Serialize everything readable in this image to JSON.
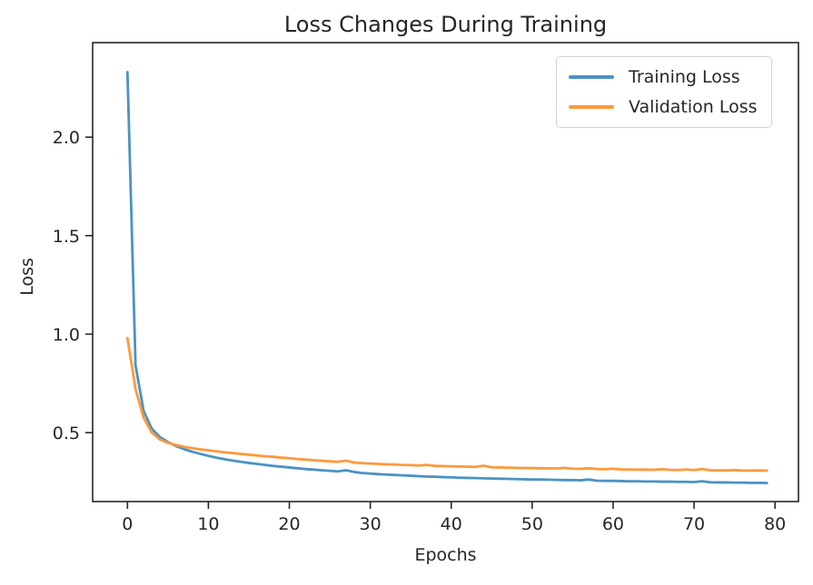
{
  "figure": {
    "background": "#ffffff",
    "text_color": "#262626",
    "spine_color": "#262626"
  },
  "chart_data": {
    "type": "line",
    "title": "Loss Changes During Training",
    "xlabel": "Epochs",
    "ylabel": "Loss",
    "grid": false,
    "legend_position": "upper right",
    "xlim": [
      -4.3,
      82.9
    ],
    "ylim": [
      0.15,
      2.48
    ],
    "xticks": [
      0,
      10,
      20,
      30,
      40,
      50,
      60,
      70,
      80
    ],
    "yticks": [
      0.5,
      1.0,
      1.5,
      2.0
    ],
    "x": [
      0,
      1,
      2,
      3,
      4,
      5,
      6,
      7,
      8,
      9,
      10,
      11,
      12,
      13,
      14,
      15,
      16,
      17,
      18,
      19,
      20,
      21,
      22,
      23,
      24,
      25,
      26,
      27,
      28,
      29,
      30,
      31,
      32,
      33,
      34,
      35,
      36,
      37,
      38,
      39,
      40,
      41,
      42,
      43,
      44,
      45,
      46,
      47,
      48,
      49,
      50,
      51,
      52,
      53,
      54,
      55,
      56,
      57,
      58,
      59,
      60,
      61,
      62,
      63,
      64,
      65,
      66,
      67,
      68,
      69,
      70,
      71,
      72,
      73,
      74,
      75,
      76,
      77,
      78,
      79
    ],
    "series": [
      {
        "name": "Training Loss",
        "color": "#4C92C3",
        "values": [
          2.33,
          0.84,
          0.61,
          0.52,
          0.478,
          0.452,
          0.432,
          0.416,
          0.403,
          0.392,
          0.382,
          0.373,
          0.365,
          0.358,
          0.352,
          0.346,
          0.341,
          0.336,
          0.331,
          0.327,
          0.323,
          0.319,
          0.315,
          0.312,
          0.309,
          0.306,
          0.303,
          0.309,
          0.3,
          0.295,
          0.292,
          0.289,
          0.287,
          0.285,
          0.283,
          0.281,
          0.279,
          0.277,
          0.276,
          0.274,
          0.273,
          0.271,
          0.27,
          0.269,
          0.268,
          0.267,
          0.266,
          0.265,
          0.264,
          0.263,
          0.262,
          0.262,
          0.261,
          0.26,
          0.259,
          0.259,
          0.258,
          0.262,
          0.256,
          0.255,
          0.255,
          0.254,
          0.253,
          0.253,
          0.252,
          0.252,
          0.251,
          0.251,
          0.25,
          0.25,
          0.249,
          0.253,
          0.248,
          0.247,
          0.247,
          0.246,
          0.246,
          0.245,
          0.245,
          0.244
        ]
      },
      {
        "name": "Validation Loss",
        "color": "#FF993E",
        "values": [
          0.98,
          0.72,
          0.575,
          0.5,
          0.465,
          0.448,
          0.437,
          0.428,
          0.421,
          0.415,
          0.41,
          0.405,
          0.4,
          0.396,
          0.392,
          0.388,
          0.384,
          0.38,
          0.377,
          0.373,
          0.37,
          0.366,
          0.363,
          0.36,
          0.357,
          0.354,
          0.352,
          0.358,
          0.348,
          0.345,
          0.343,
          0.341,
          0.339,
          0.338,
          0.336,
          0.335,
          0.333,
          0.336,
          0.331,
          0.33,
          0.329,
          0.328,
          0.327,
          0.326,
          0.332,
          0.324,
          0.323,
          0.322,
          0.321,
          0.32,
          0.32,
          0.319,
          0.319,
          0.318,
          0.321,
          0.317,
          0.316,
          0.319,
          0.315,
          0.314,
          0.317,
          0.313,
          0.313,
          0.312,
          0.312,
          0.311,
          0.314,
          0.311,
          0.31,
          0.313,
          0.31,
          0.315,
          0.309,
          0.308,
          0.308,
          0.31,
          0.307,
          0.307,
          0.308,
          0.307
        ]
      }
    ]
  }
}
